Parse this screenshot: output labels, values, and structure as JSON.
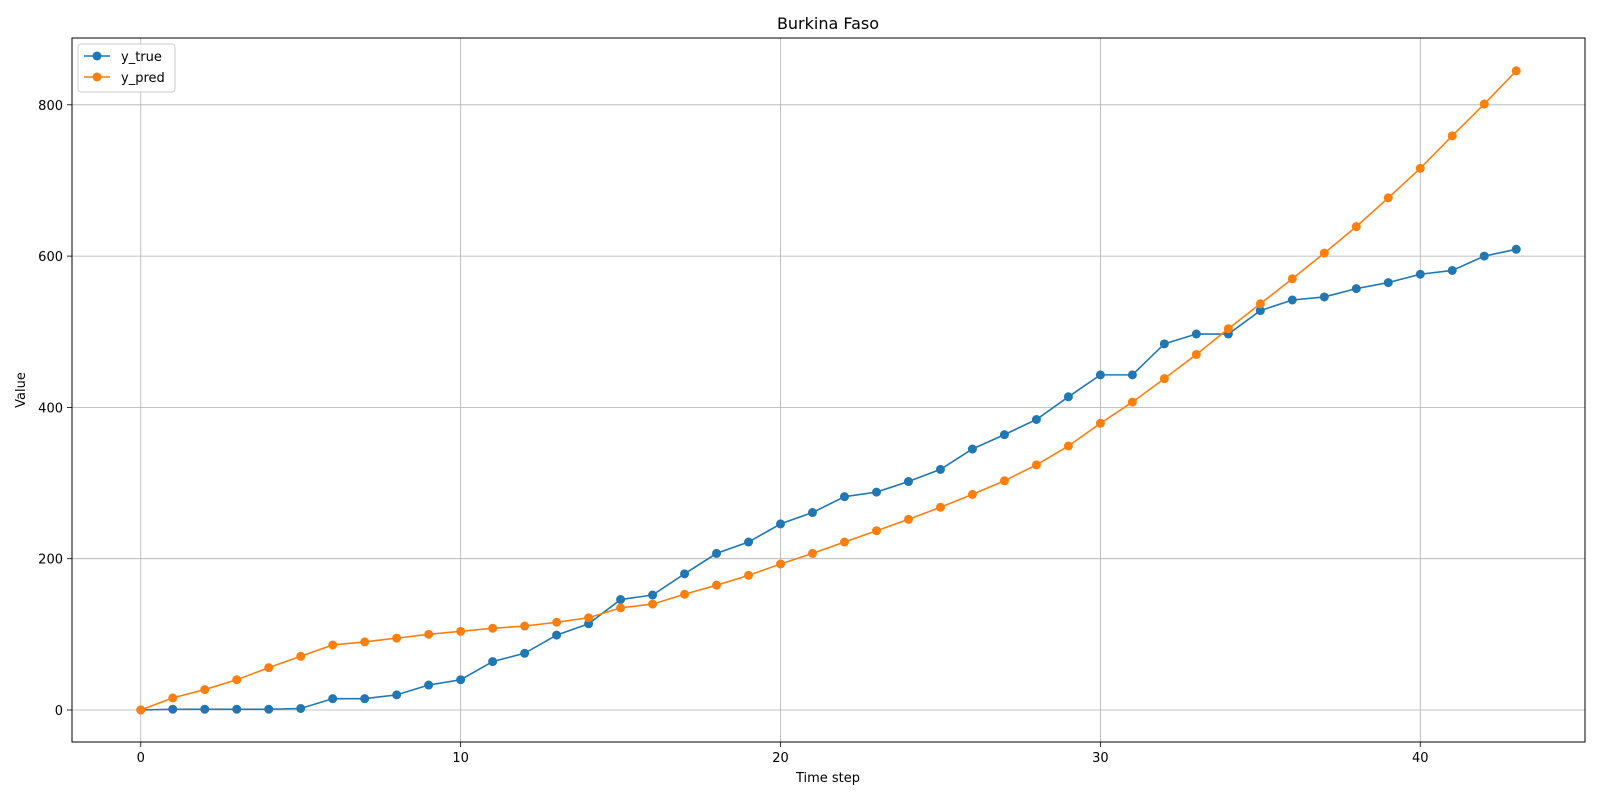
{
  "chart_data": {
    "type": "line",
    "title": "Burkina Faso",
    "xlabel": "Time step",
    "ylabel": "Value",
    "xlim": [
      -2.15,
      45.15
    ],
    "ylim": [
      -42.3,
      888.3
    ],
    "xticks": [
      0,
      10,
      20,
      30,
      40
    ],
    "yticks": [
      0,
      200,
      400,
      600,
      800
    ],
    "grid": true,
    "legend_position": "top-left",
    "x": [
      0,
      1,
      2,
      3,
      4,
      5,
      6,
      7,
      8,
      9,
      10,
      11,
      12,
      13,
      14,
      15,
      16,
      17,
      18,
      19,
      20,
      21,
      22,
      23,
      24,
      25,
      26,
      27,
      28,
      29,
      30,
      31,
      32,
      33,
      34,
      35,
      36,
      37,
      38,
      39,
      40,
      41,
      42,
      43
    ],
    "series": [
      {
        "name": "y_true",
        "color": "#1f77b4",
        "values": [
          0,
          1,
          1,
          1,
          1,
          2,
          15,
          15,
          20,
          33,
          40,
          64,
          75,
          99,
          114,
          146,
          152,
          180,
          207,
          222,
          246,
          261,
          282,
          288,
          302,
          318,
          345,
          364,
          384,
          414,
          443,
          443,
          484,
          497,
          497,
          528,
          542,
          546,
          557,
          565,
          576,
          581,
          600,
          609
        ]
      },
      {
        "name": "y_pred",
        "color": "#ff7f0e",
        "values": [
          0,
          16,
          27,
          40,
          56,
          71,
          86,
          90,
          95,
          100,
          104,
          108,
          111,
          116,
          122,
          135,
          140,
          153,
          165,
          178,
          193,
          207,
          222,
          237,
          252,
          268,
          285,
          303,
          324,
          349,
          379,
          407,
          438,
          470,
          504,
          537,
          570,
          604,
          639,
          677,
          716,
          759,
          801,
          845
        ]
      }
    ]
  }
}
